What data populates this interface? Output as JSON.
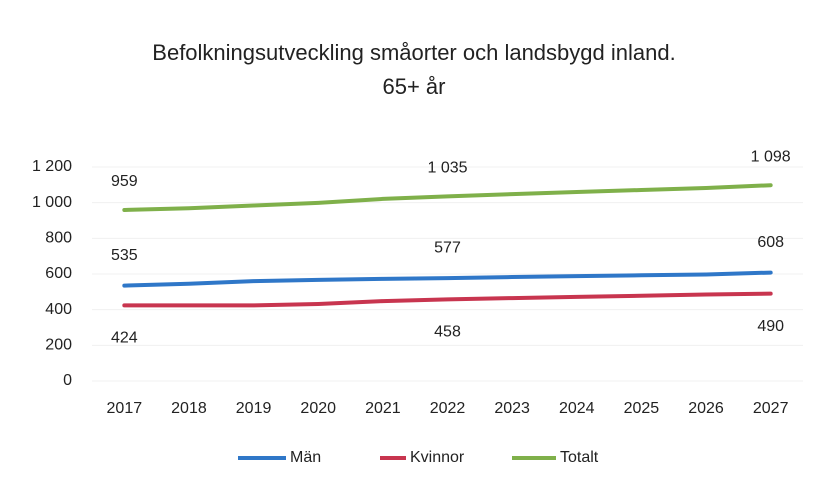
{
  "chart_data": {
    "type": "line",
    "title": [
      "Befolkningsutveckling småorter och landsbygd inland.",
      "65+ år"
    ],
    "categories": [
      "2017",
      "2018",
      "2019",
      "2020",
      "2021",
      "2022",
      "2023",
      "2024",
      "2025",
      "2026",
      "2027"
    ],
    "series": [
      {
        "name": "Män",
        "color": "#2f77c8",
        "values": [
          535,
          545,
          560,
          567,
          573,
          577,
          583,
          588,
          593,
          597,
          608
        ],
        "value_labels": [
          "535",
          null,
          null,
          null,
          null,
          "577",
          null,
          null,
          null,
          null,
          "608"
        ]
      },
      {
        "name": "Kvinnor",
        "color": "#c8354f",
        "values": [
          424,
          424,
          424,
          432,
          448,
          458,
          465,
          472,
          478,
          485,
          490
        ],
        "value_labels": [
          "424",
          null,
          null,
          null,
          null,
          "458",
          null,
          null,
          null,
          null,
          "490"
        ]
      },
      {
        "name": "Totalt",
        "color": "#7fb04a",
        "values": [
          959,
          969,
          984,
          999,
          1021,
          1035,
          1048,
          1060,
          1071,
          1082,
          1098
        ],
        "value_labels": [
          "959",
          null,
          null,
          null,
          null,
          "1 035",
          null,
          null,
          null,
          null,
          "1 098"
        ]
      }
    ],
    "ylim": [
      0,
      1200
    ],
    "yticks": [
      0,
      200,
      400,
      600,
      800,
      {
        "value": 1000,
        "label": "1 000"
      },
      {
        "value": 1200,
        "label": "1 200"
      }
    ],
    "grid": true,
    "legend": "bottom"
  }
}
